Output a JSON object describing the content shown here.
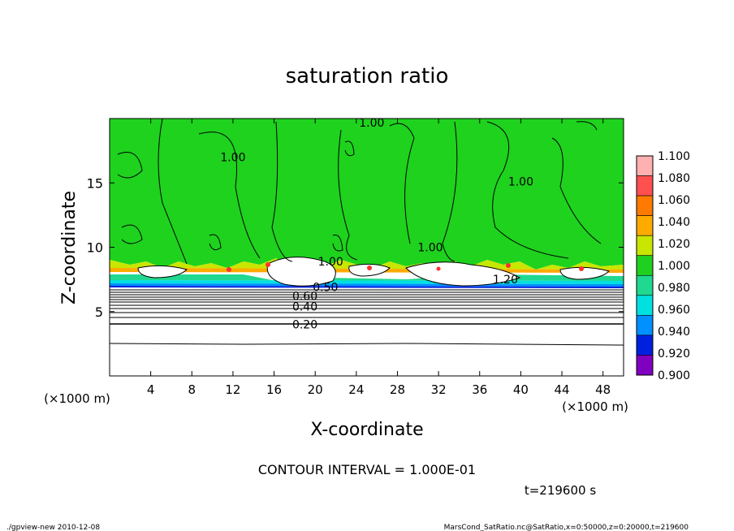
{
  "chart_data": {
    "type": "heatmap",
    "title": "saturation ratio",
    "xlabel": "X-coordinate",
    "ylabel": "Z-coordinate",
    "x_unit": "(×1000 m)",
    "y_unit": "(×1000 m)",
    "xlim": [
      0,
      50
    ],
    "ylim": [
      0,
      20
    ],
    "xticks": [
      4,
      8,
      12,
      16,
      20,
      24,
      28,
      32,
      36,
      40,
      44,
      48
    ],
    "yticks": [
      5,
      10,
      15
    ],
    "contour_interval_label": "CONTOUR INTERVAL = 1.000E-01",
    "time_label": "t=219600 s",
    "contour_labels": [
      {
        "text": "1.00",
        "x": 25.5,
        "z": 19.7
      },
      {
        "text": "1.00",
        "x": 12.0,
        "z": 17.0
      },
      {
        "text": "1.00",
        "x": 40.0,
        "z": 15.1
      },
      {
        "text": "1.00",
        "x": 31.2,
        "z": 10.0
      },
      {
        "text": "1.00",
        "x": 21.5,
        "z": 8.9
      },
      {
        "text": "1.20",
        "x": 38.5,
        "z": 7.5
      },
      {
        "text": "0.50",
        "x": 21.0,
        "z": 6.9
      },
      {
        "text": "0.60",
        "x": 19.0,
        "z": 6.2
      },
      {
        "text": "0.40",
        "x": 19.0,
        "z": 5.4
      },
      {
        "text": "0.20",
        "x": 19.0,
        "z": 4.0
      }
    ],
    "colorbar": {
      "levels": [
        "1.100",
        "1.080",
        "1.060",
        "1.040",
        "1.020",
        "1.000",
        "0.980",
        "0.960",
        "0.940",
        "0.920",
        "0.900"
      ],
      "colors": [
        "#ffb0b0",
        "#ff5050",
        "#ff7a00",
        "#ffaa00",
        "#c8e600",
        "#20d020",
        "#20d890",
        "#00e0e0",
        "#0090ff",
        "#0020e0",
        "#8000c0"
      ]
    },
    "footer_left": "./gpview-new   2010-12-08",
    "footer_right": "MarsCond_SatRatio.nc@SatRatio,x=0:50000,z=0:20000,t=219600"
  }
}
